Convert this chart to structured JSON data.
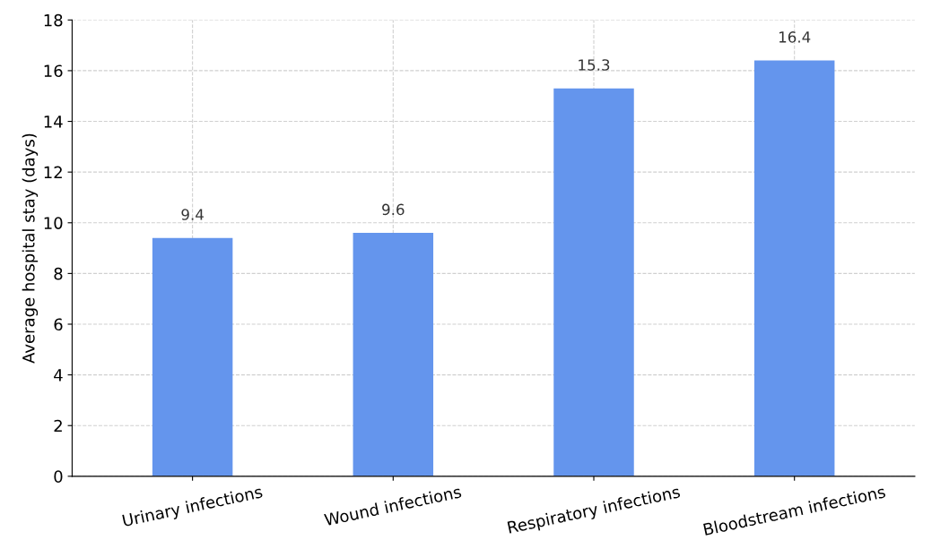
{
  "chart_data": {
    "type": "bar",
    "ylabel": "Average hospital stay (days)",
    "categories": [
      "Urinary infections",
      "Wound infections",
      "Respiratory infections",
      "Bloodstream infections"
    ],
    "values": [
      9.4,
      9.6,
      15.3,
      16.4
    ],
    "color": "#6495ed",
    "ylim": [
      0,
      18
    ],
    "yticks": [
      0,
      2,
      4,
      6,
      8,
      10,
      12,
      14,
      16,
      18
    ],
    "grid": true,
    "data_labels": true
  }
}
